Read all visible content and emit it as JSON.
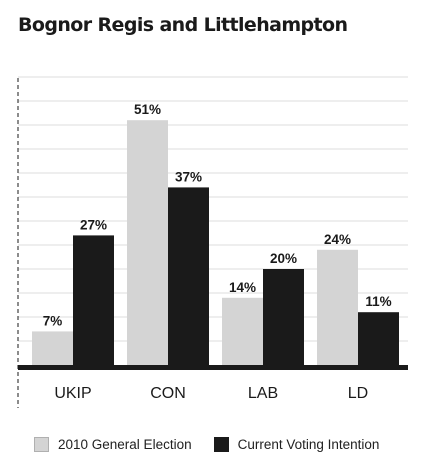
{
  "chart_data": {
    "type": "bar",
    "title": "Bognor Regis and Littlehampton",
    "xlabel": "",
    "ylabel": "",
    "categories": [
      "UKIP",
      "CON",
      "LAB",
      "LD"
    ],
    "series": [
      {
        "name": "2010 General Election",
        "values": [
          7,
          51,
          14,
          24
        ],
        "labels": [
          "7%",
          "51%",
          "14%",
          "24%"
        ]
      },
      {
        "name": "Current Voting Intention",
        "values": [
          27,
          37,
          20,
          11
        ],
        "labels": [
          "27%",
          "37%",
          "20%",
          "11%"
        ]
      }
    ],
    "ylim": [
      0,
      60
    ],
    "grid": true,
    "legend": "bottom",
    "colors": {
      "series_2010": "#d4d4d4",
      "series_current": "#1a1a1a",
      "gridline": "#dcdcdc",
      "axis": "#1a1a1a"
    }
  }
}
